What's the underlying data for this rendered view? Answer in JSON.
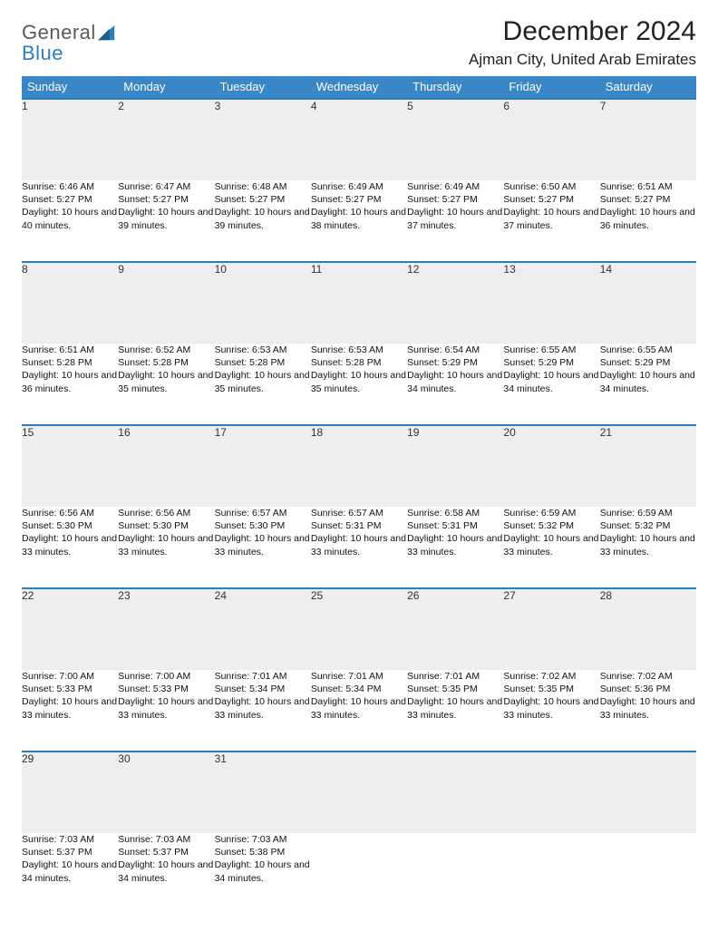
{
  "logo": {
    "line1": "General",
    "line2": "Blue"
  },
  "header": {
    "month_title": "December 2024",
    "location": "Ajman City, United Arab Emirates"
  },
  "colors": {
    "header_bg": "#3a87c7",
    "header_text": "#ffffff",
    "row_divider": "#2a7fba",
    "daynum_bg": "#eeeeee",
    "page_bg": "#ffffff",
    "logo_gray": "#5a5a5a",
    "logo_blue": "#2a7fba"
  },
  "weekdays": [
    "Sunday",
    "Monday",
    "Tuesday",
    "Wednesday",
    "Thursday",
    "Friday",
    "Saturday"
  ],
  "weeks": [
    {
      "days": [
        {
          "n": "1",
          "sunrise": "Sunrise: 6:46 AM",
          "sunset": "Sunset: 5:27 PM",
          "daylight": "Daylight: 10 hours and 40 minutes."
        },
        {
          "n": "2",
          "sunrise": "Sunrise: 6:47 AM",
          "sunset": "Sunset: 5:27 PM",
          "daylight": "Daylight: 10 hours and 39 minutes."
        },
        {
          "n": "3",
          "sunrise": "Sunrise: 6:48 AM",
          "sunset": "Sunset: 5:27 PM",
          "daylight": "Daylight: 10 hours and 39 minutes."
        },
        {
          "n": "4",
          "sunrise": "Sunrise: 6:49 AM",
          "sunset": "Sunset: 5:27 PM",
          "daylight": "Daylight: 10 hours and 38 minutes."
        },
        {
          "n": "5",
          "sunrise": "Sunrise: 6:49 AM",
          "sunset": "Sunset: 5:27 PM",
          "daylight": "Daylight: 10 hours and 37 minutes."
        },
        {
          "n": "6",
          "sunrise": "Sunrise: 6:50 AM",
          "sunset": "Sunset: 5:27 PM",
          "daylight": "Daylight: 10 hours and 37 minutes."
        },
        {
          "n": "7",
          "sunrise": "Sunrise: 6:51 AM",
          "sunset": "Sunset: 5:27 PM",
          "daylight": "Daylight: 10 hours and 36 minutes."
        }
      ]
    },
    {
      "days": [
        {
          "n": "8",
          "sunrise": "Sunrise: 6:51 AM",
          "sunset": "Sunset: 5:28 PM",
          "daylight": "Daylight: 10 hours and 36 minutes."
        },
        {
          "n": "9",
          "sunrise": "Sunrise: 6:52 AM",
          "sunset": "Sunset: 5:28 PM",
          "daylight": "Daylight: 10 hours and 35 minutes."
        },
        {
          "n": "10",
          "sunrise": "Sunrise: 6:53 AM",
          "sunset": "Sunset: 5:28 PM",
          "daylight": "Daylight: 10 hours and 35 minutes."
        },
        {
          "n": "11",
          "sunrise": "Sunrise: 6:53 AM",
          "sunset": "Sunset: 5:28 PM",
          "daylight": "Daylight: 10 hours and 35 minutes."
        },
        {
          "n": "12",
          "sunrise": "Sunrise: 6:54 AM",
          "sunset": "Sunset: 5:29 PM",
          "daylight": "Daylight: 10 hours and 34 minutes."
        },
        {
          "n": "13",
          "sunrise": "Sunrise: 6:55 AM",
          "sunset": "Sunset: 5:29 PM",
          "daylight": "Daylight: 10 hours and 34 minutes."
        },
        {
          "n": "14",
          "sunrise": "Sunrise: 6:55 AM",
          "sunset": "Sunset: 5:29 PM",
          "daylight": "Daylight: 10 hours and 34 minutes."
        }
      ]
    },
    {
      "days": [
        {
          "n": "15",
          "sunrise": "Sunrise: 6:56 AM",
          "sunset": "Sunset: 5:30 PM",
          "daylight": "Daylight: 10 hours and 33 minutes."
        },
        {
          "n": "16",
          "sunrise": "Sunrise: 6:56 AM",
          "sunset": "Sunset: 5:30 PM",
          "daylight": "Daylight: 10 hours and 33 minutes."
        },
        {
          "n": "17",
          "sunrise": "Sunrise: 6:57 AM",
          "sunset": "Sunset: 5:30 PM",
          "daylight": "Daylight: 10 hours and 33 minutes."
        },
        {
          "n": "18",
          "sunrise": "Sunrise: 6:57 AM",
          "sunset": "Sunset: 5:31 PM",
          "daylight": "Daylight: 10 hours and 33 minutes."
        },
        {
          "n": "19",
          "sunrise": "Sunrise: 6:58 AM",
          "sunset": "Sunset: 5:31 PM",
          "daylight": "Daylight: 10 hours and 33 minutes."
        },
        {
          "n": "20",
          "sunrise": "Sunrise: 6:59 AM",
          "sunset": "Sunset: 5:32 PM",
          "daylight": "Daylight: 10 hours and 33 minutes."
        },
        {
          "n": "21",
          "sunrise": "Sunrise: 6:59 AM",
          "sunset": "Sunset: 5:32 PM",
          "daylight": "Daylight: 10 hours and 33 minutes."
        }
      ]
    },
    {
      "days": [
        {
          "n": "22",
          "sunrise": "Sunrise: 7:00 AM",
          "sunset": "Sunset: 5:33 PM",
          "daylight": "Daylight: 10 hours and 33 minutes."
        },
        {
          "n": "23",
          "sunrise": "Sunrise: 7:00 AM",
          "sunset": "Sunset: 5:33 PM",
          "daylight": "Daylight: 10 hours and 33 minutes."
        },
        {
          "n": "24",
          "sunrise": "Sunrise: 7:01 AM",
          "sunset": "Sunset: 5:34 PM",
          "daylight": "Daylight: 10 hours and 33 minutes."
        },
        {
          "n": "25",
          "sunrise": "Sunrise: 7:01 AM",
          "sunset": "Sunset: 5:34 PM",
          "daylight": "Daylight: 10 hours and 33 minutes."
        },
        {
          "n": "26",
          "sunrise": "Sunrise: 7:01 AM",
          "sunset": "Sunset: 5:35 PM",
          "daylight": "Daylight: 10 hours and 33 minutes."
        },
        {
          "n": "27",
          "sunrise": "Sunrise: 7:02 AM",
          "sunset": "Sunset: 5:35 PM",
          "daylight": "Daylight: 10 hours and 33 minutes."
        },
        {
          "n": "28",
          "sunrise": "Sunrise: 7:02 AM",
          "sunset": "Sunset: 5:36 PM",
          "daylight": "Daylight: 10 hours and 33 minutes."
        }
      ]
    },
    {
      "days": [
        {
          "n": "29",
          "sunrise": "Sunrise: 7:03 AM",
          "sunset": "Sunset: 5:37 PM",
          "daylight": "Daylight: 10 hours and 34 minutes."
        },
        {
          "n": "30",
          "sunrise": "Sunrise: 7:03 AM",
          "sunset": "Sunset: 5:37 PM",
          "daylight": "Daylight: 10 hours and 34 minutes."
        },
        {
          "n": "31",
          "sunrise": "Sunrise: 7:03 AM",
          "sunset": "Sunset: 5:38 PM",
          "daylight": "Daylight: 10 hours and 34 minutes."
        },
        null,
        null,
        null,
        null
      ]
    }
  ]
}
